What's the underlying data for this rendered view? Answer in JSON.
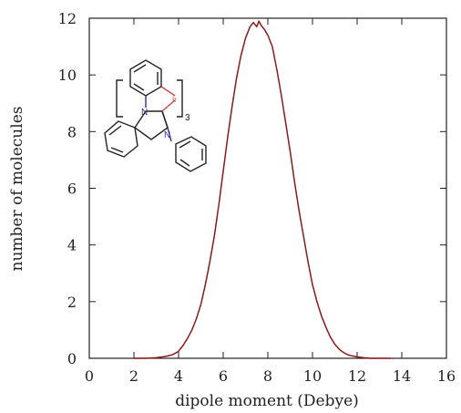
{
  "chart_data": {
    "type": "line",
    "title": "",
    "xlabel": "dipole moment (Debye)",
    "ylabel": "number of molecules",
    "xlim": [
      0,
      16
    ],
    "ylim": [
      0,
      12
    ],
    "xticks": [
      0,
      2,
      4,
      6,
      8,
      10,
      12,
      14,
      16
    ],
    "yticks": [
      0,
      2,
      4,
      6,
      8,
      10,
      12
    ],
    "grid": false,
    "legend": "none",
    "line_color": "#8b1a1a",
    "series": [
      {
        "x": [
          2.0,
          2.5,
          3.0,
          3.3,
          3.5,
          3.7,
          3.9,
          4.0,
          4.2,
          4.4,
          4.6,
          4.8,
          5.0,
          5.2,
          5.4,
          5.6,
          5.8,
          6.0,
          6.2,
          6.4,
          6.6,
          6.8,
          7.0,
          7.2,
          7.35,
          7.5,
          7.6,
          7.7,
          7.85,
          8.0,
          8.2,
          8.4,
          8.6,
          8.8,
          9.0,
          9.2,
          9.4,
          9.6,
          9.8,
          10.0,
          10.2,
          10.4,
          10.6,
          10.8,
          11.0,
          11.2,
          11.4,
          11.6,
          11.8,
          12.0,
          12.3,
          12.6,
          13.0,
          13.5
        ],
        "y": [
          0.0,
          0.0,
          0.02,
          0.05,
          0.08,
          0.12,
          0.2,
          0.25,
          0.45,
          0.7,
          1.0,
          1.4,
          1.9,
          2.6,
          3.4,
          4.3,
          5.4,
          6.6,
          7.8,
          8.9,
          9.9,
          10.7,
          11.3,
          11.7,
          11.85,
          11.7,
          11.9,
          11.75,
          11.6,
          11.4,
          11.0,
          10.2,
          9.3,
          8.3,
          7.3,
          6.2,
          5.2,
          4.3,
          3.4,
          2.6,
          2.0,
          1.5,
          1.1,
          0.75,
          0.5,
          0.32,
          0.2,
          0.12,
          0.08,
          0.05,
          0.02,
          0.0,
          0.0,
          0.0
        ]
      }
    ],
    "annotations": {
      "atom_n_top": "N",
      "atom_n_bottom": "N",
      "atom_ir": "Ir",
      "subscript": "3"
    }
  }
}
